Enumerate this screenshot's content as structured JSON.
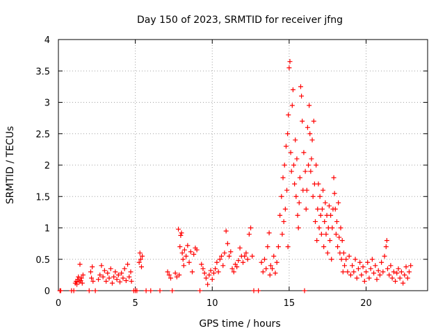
{
  "chart_data": {
    "type": "scatter",
    "title": "Day 150 of 2023, SRMTID for receiver jfng",
    "xlabel": "GPS time / hours",
    "ylabel": "SRMTID / TECUs",
    "xlim": [
      0,
      24
    ],
    "ylim": [
      0,
      4
    ],
    "xticks": [
      0,
      5,
      10,
      15,
      20
    ],
    "yticks": [
      0,
      0.5,
      1,
      1.5,
      2,
      2.5,
      3,
      3.5,
      4
    ],
    "ytick_labels": [
      "0",
      "0.5",
      "1",
      "1.5",
      "2",
      "2.5",
      "3",
      "3.5",
      "4"
    ],
    "grid": true,
    "marker": "+",
    "color": "#ff0000",
    "series": [
      {
        "name": "SRMTID",
        "points": [
          [
            0.1,
            0
          ],
          [
            0.15,
            0
          ],
          [
            0.85,
            0
          ],
          [
            1.0,
            0
          ],
          [
            1.1,
            0.12
          ],
          [
            1.15,
            0.15
          ],
          [
            1.2,
            0.1
          ],
          [
            1.25,
            0.18
          ],
          [
            1.3,
            0.22
          ],
          [
            1.35,
            0.14
          ],
          [
            1.4,
            0.42
          ],
          [
            1.45,
            0.16
          ],
          [
            1.5,
            0.2
          ],
          [
            1.55,
            0.12
          ],
          [
            1.6,
            0.25
          ],
          [
            2.0,
            0
          ],
          [
            2.1,
            0.3
          ],
          [
            2.15,
            0.2
          ],
          [
            2.2,
            0.38
          ],
          [
            2.25,
            0.15
          ],
          [
            2.4,
            0
          ],
          [
            2.6,
            0.18
          ],
          [
            2.7,
            0.25
          ],
          [
            2.8,
            0.4
          ],
          [
            2.9,
            0.22
          ],
          [
            3.0,
            0.32
          ],
          [
            3.1,
            0.15
          ],
          [
            3.2,
            0.28
          ],
          [
            3.3,
            0.2
          ],
          [
            3.4,
            0.35
          ],
          [
            3.5,
            0.12
          ],
          [
            3.6,
            0.22
          ],
          [
            3.7,
            0.3
          ],
          [
            3.8,
            0.18
          ],
          [
            3.9,
            0.25
          ],
          [
            4.0,
            0.14
          ],
          [
            4.1,
            0.28
          ],
          [
            4.2,
            0.2
          ],
          [
            4.3,
            0.35
          ],
          [
            4.4,
            0.16
          ],
          [
            4.5,
            0.42
          ],
          [
            4.6,
            0.22
          ],
          [
            4.7,
            0.3
          ],
          [
            4.75,
            0.15
          ],
          [
            4.9,
            0
          ],
          [
            5.0,
            0
          ],
          [
            5.1,
            0
          ],
          [
            5.25,
            0.45
          ],
          [
            5.3,
            0.6
          ],
          [
            5.35,
            0.5
          ],
          [
            5.4,
            0.38
          ],
          [
            5.45,
            0.55
          ],
          [
            5.7,
            0
          ],
          [
            6.0,
            0
          ],
          [
            6.6,
            0
          ],
          [
            7.1,
            0.3
          ],
          [
            7.2,
            0.25
          ],
          [
            7.3,
            0.2
          ],
          [
            7.4,
            0
          ],
          [
            7.6,
            0.28
          ],
          [
            7.7,
            0.22
          ],
          [
            7.8,
            0.98
          ],
          [
            7.85,
            0.25
          ],
          [
            7.9,
            0.7
          ],
          [
            7.95,
            0.88
          ],
          [
            8.0,
            0.92
          ],
          [
            8.05,
            0.6
          ],
          [
            8.1,
            0.5
          ],
          [
            8.15,
            0.4
          ],
          [
            8.2,
            0.65
          ],
          [
            8.3,
            0.55
          ],
          [
            8.4,
            0.72
          ],
          [
            8.5,
            0.45
          ],
          [
            8.6,
            0.62
          ],
          [
            8.7,
            0.3
          ],
          [
            8.8,
            0.58
          ],
          [
            8.9,
            0.68
          ],
          [
            9.0,
            0.65
          ],
          [
            9.2,
            0
          ],
          [
            9.3,
            0.42
          ],
          [
            9.4,
            0.35
          ],
          [
            9.5,
            0.28
          ],
          [
            9.6,
            0.2
          ],
          [
            9.7,
            0.1
          ],
          [
            9.8,
            0.25
          ],
          [
            9.9,
            0.32
          ],
          [
            10.0,
            0.18
          ],
          [
            10.1,
            0.28
          ],
          [
            10.2,
            0.35
          ],
          [
            10.3,
            0.45
          ],
          [
            10.4,
            0.3
          ],
          [
            10.5,
            0.5
          ],
          [
            10.6,
            0.55
          ],
          [
            10.7,
            0.4
          ],
          [
            10.8,
            0.6
          ],
          [
            10.9,
            0.95
          ],
          [
            11.0,
            0.75
          ],
          [
            11.1,
            0.55
          ],
          [
            11.2,
            0.62
          ],
          [
            11.3,
            0.35
          ],
          [
            11.4,
            0.3
          ],
          [
            11.5,
            0.42
          ],
          [
            11.6,
            0.38
          ],
          [
            11.7,
            0.48
          ],
          [
            11.8,
            0.68
          ],
          [
            11.9,
            0.55
          ],
          [
            12.0,
            0.45
          ],
          [
            12.1,
            0.55
          ],
          [
            12.2,
            0.6
          ],
          [
            12.3,
            0.5
          ],
          [
            12.4,
            0.9
          ],
          [
            12.5,
            1.0
          ],
          [
            12.6,
            0.55
          ],
          [
            12.7,
            0
          ],
          [
            13.0,
            0
          ],
          [
            13.2,
            0.45
          ],
          [
            13.3,
            0.3
          ],
          [
            13.4,
            0.5
          ],
          [
            13.5,
            0.35
          ],
          [
            13.6,
            0.7
          ],
          [
            13.7,
            0.92
          ],
          [
            13.75,
            0.25
          ],
          [
            13.8,
            0.4
          ],
          [
            13.9,
            0.35
          ],
          [
            14.0,
            0.55
          ],
          [
            14.1,
            0.28
          ],
          [
            14.2,
            0.45
          ],
          [
            14.3,
            0.7
          ],
          [
            14.4,
            1.2
          ],
          [
            14.5,
            1.5
          ],
          [
            14.55,
            0.9
          ],
          [
            14.6,
            1.8
          ],
          [
            14.65,
            1.1
          ],
          [
            14.7,
            2.0
          ],
          [
            14.75,
            1.3
          ],
          [
            14.8,
            2.3
          ],
          [
            14.85,
            1.6
          ],
          [
            14.9,
            2.5
          ],
          [
            14.92,
            0.7
          ],
          [
            14.95,
            2.8
          ],
          [
            15.0,
            3.55
          ],
          [
            15.05,
            3.65
          ],
          [
            15.1,
            2.2
          ],
          [
            15.15,
            1.9
          ],
          [
            15.2,
            2.95
          ],
          [
            15.25,
            3.2
          ],
          [
            15.3,
            2.0
          ],
          [
            15.35,
            1.7
          ],
          [
            15.4,
            2.4
          ],
          [
            15.45,
            1.5
          ],
          [
            15.5,
            2.1
          ],
          [
            15.55,
            1.2
          ],
          [
            15.6,
            1.0
          ],
          [
            15.65,
            1.4
          ],
          [
            15.7,
            1.8
          ],
          [
            15.75,
            3.25
          ],
          [
            15.8,
            3.1
          ],
          [
            15.85,
            2.7
          ],
          [
            15.9,
            1.6
          ],
          [
            15.95,
            2.2
          ],
          [
            16.0,
            0
          ],
          [
            16.05,
            1.9
          ],
          [
            16.1,
            1.3
          ],
          [
            16.15,
            1.6
          ],
          [
            16.2,
            2.6
          ],
          [
            16.25,
            2.0
          ],
          [
            16.3,
            2.95
          ],
          [
            16.35,
            2.5
          ],
          [
            16.4,
            1.9
          ],
          [
            16.45,
            2.1
          ],
          [
            16.5,
            2.4
          ],
          [
            16.55,
            1.5
          ],
          [
            16.6,
            2.7
          ],
          [
            16.65,
            1.7
          ],
          [
            16.7,
            1.1
          ],
          [
            16.75,
            2.0
          ],
          [
            16.8,
            0.8
          ],
          [
            16.85,
            1.3
          ],
          [
            16.9,
            1.7
          ],
          [
            16.95,
            1.0
          ],
          [
            17.0,
            1.5
          ],
          [
            17.05,
            1.2
          ],
          [
            17.1,
            0.9
          ],
          [
            17.15,
            1.3
          ],
          [
            17.2,
            1.6
          ],
          [
            17.25,
            0.7
          ],
          [
            17.3,
            1.1
          ],
          [
            17.35,
            1.4
          ],
          [
            17.4,
            0.9
          ],
          [
            17.45,
            1.2
          ],
          [
            17.5,
            0.6
          ],
          [
            17.55,
            1.0
          ],
          [
            17.6,
            1.35
          ],
          [
            17.65,
            0.8
          ],
          [
            17.7,
            1.2
          ],
          [
            17.75,
            0.5
          ],
          [
            17.8,
            1.0
          ],
          [
            17.85,
            1.3
          ],
          [
            17.9,
            1.8
          ],
          [
            17.95,
            1.55
          ],
          [
            18.0,
            1.3
          ],
          [
            18.05,
            0.9
          ],
          [
            18.1,
            1.1
          ],
          [
            18.15,
            0.7
          ],
          [
            18.2,
            1.4
          ],
          [
            18.25,
            0.85
          ],
          [
            18.3,
            0.6
          ],
          [
            18.35,
            1.0
          ],
          [
            18.4,
            0.5
          ],
          [
            18.45,
            0.8
          ],
          [
            18.5,
            0.3
          ],
          [
            18.55,
            0.6
          ],
          [
            18.6,
            0.4
          ],
          [
            18.7,
            0.5
          ],
          [
            18.8,
            0.3
          ],
          [
            18.9,
            0.55
          ],
          [
            19.0,
            0.25
          ],
          [
            19.1,
            0.4
          ],
          [
            19.2,
            0.3
          ],
          [
            19.3,
            0.5
          ],
          [
            19.4,
            0.2
          ],
          [
            19.5,
            0.35
          ],
          [
            19.6,
            0.45
          ],
          [
            19.7,
            0.25
          ],
          [
            19.8,
            0.38
          ],
          [
            19.9,
            0.15
          ],
          [
            20.0,
            0.3
          ],
          [
            20.1,
            0.45
          ],
          [
            20.2,
            0.2
          ],
          [
            20.3,
            0.35
          ],
          [
            20.4,
            0.5
          ],
          [
            20.5,
            0.28
          ],
          [
            20.6,
            0.4
          ],
          [
            20.7,
            0.18
          ],
          [
            20.8,
            0.32
          ],
          [
            20.9,
            0.25
          ],
          [
            21.0,
            0.45
          ],
          [
            21.1,
            0.3
          ],
          [
            21.2,
            0.55
          ],
          [
            21.3,
            0.7
          ],
          [
            21.35,
            0.8
          ],
          [
            21.4,
            0.35
          ],
          [
            21.5,
            0.25
          ],
          [
            21.6,
            0.4
          ],
          [
            21.7,
            0.2
          ],
          [
            21.8,
            0.3
          ],
          [
            21.9,
            0.15
          ],
          [
            22.0,
            0.28
          ],
          [
            22.1,
            0.35
          ],
          [
            22.2,
            0.2
          ],
          [
            22.3,
            0.3
          ],
          [
            22.4,
            0.12
          ],
          [
            22.5,
            0.25
          ],
          [
            22.6,
            0.38
          ],
          [
            22.7,
            0.2
          ],
          [
            22.8,
            0.3
          ],
          [
            22.9,
            0.4
          ]
        ]
      }
    ]
  }
}
